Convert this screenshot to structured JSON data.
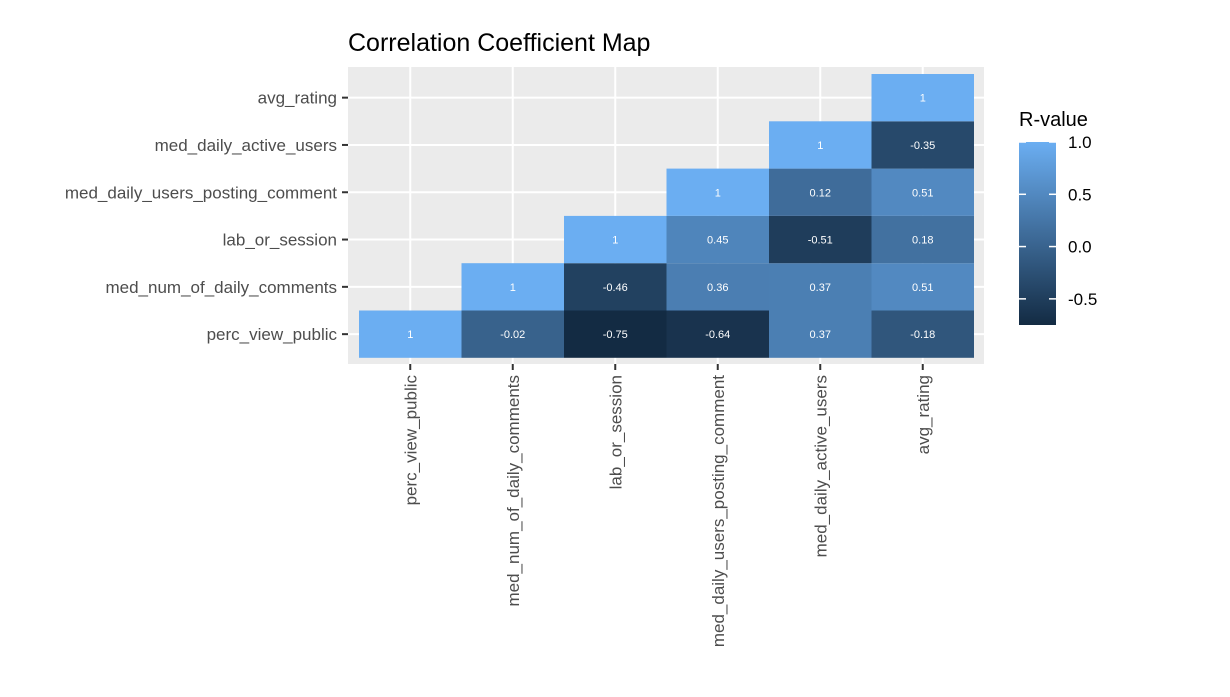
{
  "chart_data": {
    "type": "heatmap",
    "title": "Correlation Coefficient Map",
    "xlabel": "",
    "ylabel": "",
    "variables": [
      "perc_view_public",
      "med_num_of_daily_comments",
      "lab_or_session",
      "med_daily_users_posting_comment",
      "med_daily_active_users",
      "avg_rating"
    ],
    "cells": [
      {
        "x": "perc_view_public",
        "y": "perc_view_public",
        "value": 1,
        "label": "1"
      },
      {
        "x": "med_num_of_daily_comments",
        "y": "perc_view_public",
        "value": -0.02,
        "label": "-0.02"
      },
      {
        "x": "lab_or_session",
        "y": "perc_view_public",
        "value": -0.75,
        "label": "-0.75"
      },
      {
        "x": "med_daily_users_posting_comment",
        "y": "perc_view_public",
        "value": -0.64,
        "label": "-0.64"
      },
      {
        "x": "med_daily_active_users",
        "y": "perc_view_public",
        "value": 0.37,
        "label": "0.37"
      },
      {
        "x": "avg_rating",
        "y": "perc_view_public",
        "value": -0.18,
        "label": "-0.18"
      },
      {
        "x": "med_num_of_daily_comments",
        "y": "med_num_of_daily_comments",
        "value": 1,
        "label": "1"
      },
      {
        "x": "lab_or_session",
        "y": "med_num_of_daily_comments",
        "value": -0.46,
        "label": "-0.46"
      },
      {
        "x": "med_daily_users_posting_comment",
        "y": "med_num_of_daily_comments",
        "value": 0.36,
        "label": "0.36"
      },
      {
        "x": "med_daily_active_users",
        "y": "med_num_of_daily_comments",
        "value": 0.37,
        "label": "0.37"
      },
      {
        "x": "avg_rating",
        "y": "med_num_of_daily_comments",
        "value": 0.51,
        "label": "0.51"
      },
      {
        "x": "lab_or_session",
        "y": "lab_or_session",
        "value": 1,
        "label": "1"
      },
      {
        "x": "med_daily_users_posting_comment",
        "y": "lab_or_session",
        "value": 0.45,
        "label": "0.45"
      },
      {
        "x": "med_daily_active_users",
        "y": "lab_or_session",
        "value": -0.51,
        "label": "-0.51"
      },
      {
        "x": "avg_rating",
        "y": "lab_or_session",
        "value": 0.18,
        "label": "0.18"
      },
      {
        "x": "med_daily_users_posting_comment",
        "y": "med_daily_users_posting_comment",
        "value": 1,
        "label": "1"
      },
      {
        "x": "med_daily_active_users",
        "y": "med_daily_users_posting_comment",
        "value": 0.12,
        "label": "0.12"
      },
      {
        "x": "avg_rating",
        "y": "med_daily_users_posting_comment",
        "value": 0.51,
        "label": "0.51"
      },
      {
        "x": "med_daily_active_users",
        "y": "med_daily_active_users",
        "value": 1,
        "label": "1"
      },
      {
        "x": "avg_rating",
        "y": "med_daily_active_users",
        "value": -0.35,
        "label": "-0.35"
      },
      {
        "x": "avg_rating",
        "y": "avg_rating",
        "value": 1,
        "label": "1"
      }
    ],
    "legend": {
      "title": "R-value",
      "position": "right",
      "range": [
        -0.75,
        1.0
      ],
      "ticks": [
        1.0,
        0.5,
        0.0,
        -0.5
      ],
      "tick_labels": [
        "1.0",
        "0.5",
        "0.0",
        "-0.5"
      ],
      "color_low": "#132B43",
      "color_high": "#6BAEF2"
    },
    "grid": true,
    "panel_background": "#EBEBEB"
  }
}
